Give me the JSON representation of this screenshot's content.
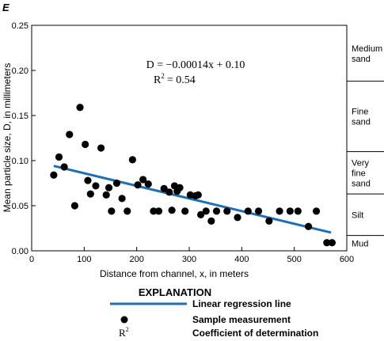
{
  "panel_letter": "E",
  "chart_data": {
    "type": "scatter",
    "xlabel": "Distance from channel, x, in meters",
    "ylabel": "Mean particle size, D, in millimeters",
    "xlim": [
      0,
      600
    ],
    "ylim": [
      0,
      0.25
    ],
    "x_ticks": [
      0,
      100,
      200,
      300,
      400,
      500,
      600
    ],
    "x_tick_labels": [
      "0",
      "100",
      "200",
      "300",
      "400",
      "500",
      "600"
    ],
    "y_ticks": [
      0,
      0.05,
      0.1,
      0.15,
      0.2,
      0.25
    ],
    "y_tick_labels": [
      "0.00",
      "0.05",
      "0.10",
      "0.15",
      "0.20",
      "0.25"
    ],
    "grid": false,
    "equation": {
      "line1": "D = −0.00014x + 0.10",
      "r2_symbol": "R",
      "r2_exp": "2",
      "r2_value": "= 0.54"
    },
    "regression": {
      "slope": -0.00014,
      "intercept": 0.1,
      "x_range": [
        42,
        570
      ],
      "color": "#1f6fb5"
    },
    "series": [
      {
        "points": [
          [
            42,
            0.084
          ],
          [
            52,
            0.104
          ],
          [
            62,
            0.093
          ],
          [
            72,
            0.129
          ],
          [
            82,
            0.05
          ],
          [
            92,
            0.159
          ],
          [
            102,
            0.118
          ],
          [
            107,
            0.078
          ],
          [
            112,
            0.063
          ],
          [
            122,
            0.072
          ],
          [
            132,
            0.114
          ],
          [
            142,
            0.062
          ],
          [
            147,
            0.07
          ],
          [
            152,
            0.044
          ],
          [
            162,
            0.075
          ],
          [
            172,
            0.058
          ],
          [
            182,
            0.044
          ],
          [
            192,
            0.101
          ],
          [
            202,
            0.073
          ],
          [
            212,
            0.079
          ],
          [
            222,
            0.074
          ],
          [
            232,
            0.044
          ],
          [
            242,
            0.044
          ],
          [
            252,
            0.069
          ],
          [
            262,
            0.065
          ],
          [
            267,
            0.045
          ],
          [
            272,
            0.072
          ],
          [
            277,
            0.066
          ],
          [
            282,
            0.07
          ],
          [
            292,
            0.044
          ],
          [
            302,
            0.062
          ],
          [
            312,
            0.061
          ],
          [
            317,
            0.062
          ],
          [
            322,
            0.04
          ],
          [
            332,
            0.044
          ],
          [
            342,
            0.033
          ],
          [
            352,
            0.044
          ],
          [
            372,
            0.044
          ],
          [
            392,
            0.037
          ],
          [
            412,
            0.044
          ],
          [
            432,
            0.044
          ],
          [
            452,
            0.033
          ],
          [
            472,
            0.044
          ],
          [
            492,
            0.044
          ],
          [
            507,
            0.044
          ],
          [
            527,
            0.027
          ],
          [
            542,
            0.044
          ],
          [
            562,
            0.009
          ],
          [
            572,
            0.009
          ]
        ]
      }
    ],
    "size_classes": [
      {
        "label_lines": [
          "Medium",
          "sand"
        ],
        "lower": 0.188,
        "upper": 0.25
      },
      {
        "label_lines": [
          "Fine",
          "sand"
        ],
        "lower": 0.11,
        "upper": 0.188
      },
      {
        "label_lines": [
          "Very",
          "fine",
          "sand"
        ],
        "lower": 0.063,
        "upper": 0.11
      },
      {
        "label_lines": [
          "Silt"
        ],
        "lower": 0.017,
        "upper": 0.063
      },
      {
        "label_lines": [
          "Mud"
        ],
        "lower": 0,
        "upper": 0.017
      }
    ]
  },
  "legend": {
    "title": "EXPLANATION",
    "items": [
      {
        "symbol": "line",
        "label": "Linear regression line"
      },
      {
        "symbol": "dot",
        "label": "Sample measurement"
      },
      {
        "symbol": "r2",
        "symbol_text": "R",
        "symbol_exp": "2",
        "label": "Coefficient of determination"
      }
    ]
  }
}
